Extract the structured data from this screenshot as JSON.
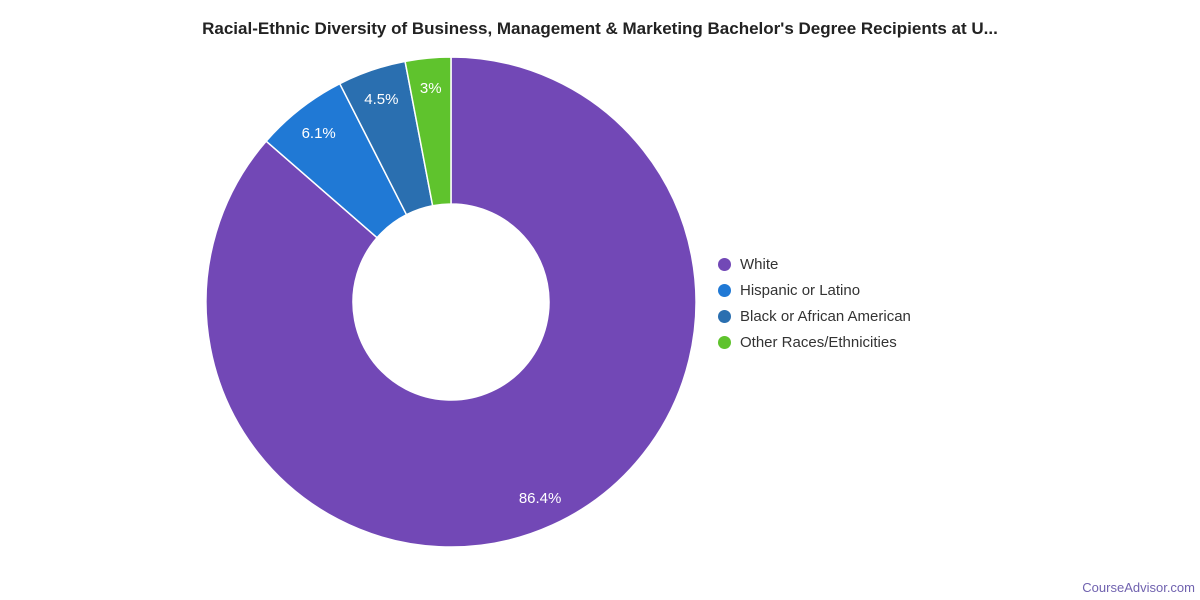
{
  "title": "Racial-Ethnic Diversity of Business, Management & Marketing Bachelor's Degree Recipients at U...",
  "watermark": {
    "label": "CourseAdvisor.com",
    "color": "#7062AF"
  },
  "chart_data": {
    "type": "pie",
    "subtype": "donut",
    "title": "Racial-Ethnic Diversity of Business, Management & Marketing Bachelor's Degree Recipients at U...",
    "legend_position": "right",
    "start_angle_deg": 0,
    "direction": "clockwise",
    "inner_radius_ratio": 0.4,
    "data_label_color": "#ffffff",
    "slice_border_color": "#ffffff",
    "background_color": "#ffffff",
    "slices": [
      {
        "label": "White",
        "value": 86.4,
        "display": "86.4%",
        "color": "#7248B6"
      },
      {
        "label": "Hispanic or Latino",
        "value": 6.1,
        "display": "6.1%",
        "color": "#2079D5"
      },
      {
        "label": "Black or African American",
        "value": 4.5,
        "display": "4.5%",
        "color": "#2A6FB0"
      },
      {
        "label": "Other Races/Ethnicities",
        "value": 3,
        "display": "3%",
        "color": "#5FC32D"
      }
    ]
  }
}
